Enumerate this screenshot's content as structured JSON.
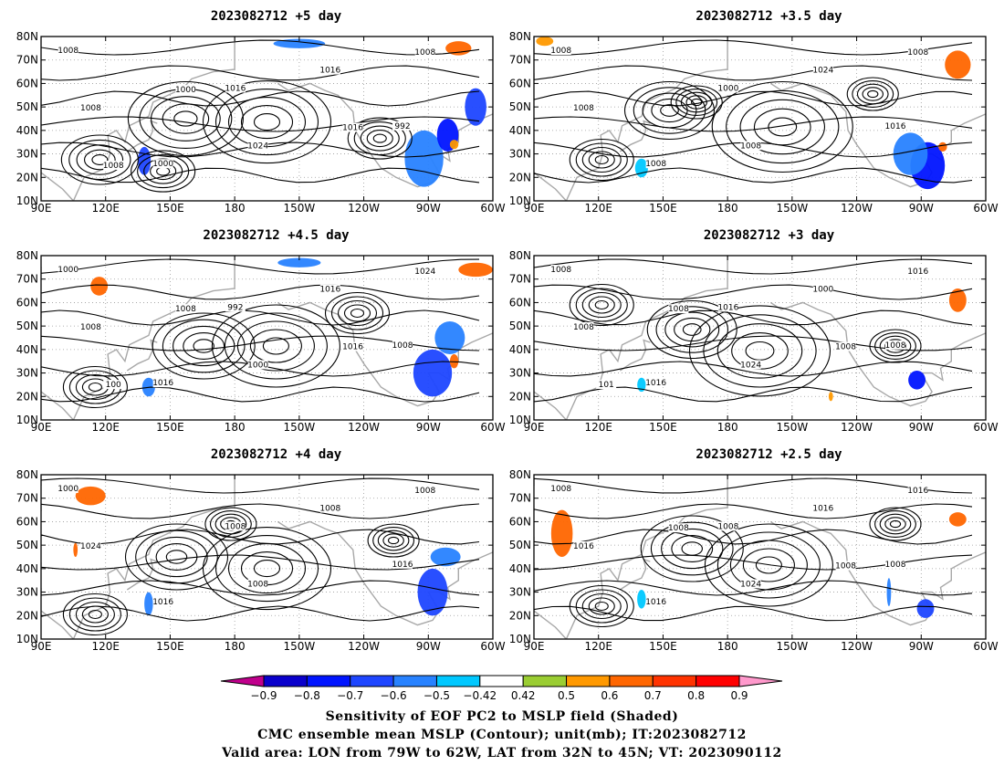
{
  "panels": [
    {
      "title": "2023082712 +5 day",
      "contour_labels": [
        "1008",
        "1016",
        "992",
        "1000",
        "1016",
        "1008",
        "1024",
        "1008",
        "1000",
        "1016",
        "1008"
      ],
      "shading": [
        {
          "level": -0.7,
          "lon": 138,
          "lat": 27,
          "rx": 3,
          "ry": 6
        },
        {
          "level": -0.6,
          "lon": 268,
          "lat": 28,
          "rx": 9,
          "ry": 12
        },
        {
          "level": -0.8,
          "lon": 279,
          "lat": 38,
          "rx": 5,
          "ry": 7
        },
        {
          "level": -0.7,
          "lon": 292,
          "lat": 50,
          "rx": 5,
          "ry": 8
        },
        {
          "level": -0.6,
          "lon": 210,
          "lat": 77,
          "rx": 12,
          "ry": 2
        },
        {
          "level": 0.6,
          "lon": 284,
          "lat": 75,
          "rx": 6,
          "ry": 3
        },
        {
          "level": 0.5,
          "lon": 282,
          "lat": 34,
          "rx": 2,
          "ry": 2
        }
      ]
    },
    {
      "title": "2023082712 +3.5 day",
      "contour_labels": [
        "1008",
        "1000",
        "1016",
        "1008",
        "1024",
        "1008",
        "1008",
        "1008"
      ],
      "shading": [
        {
          "level": -0.8,
          "lon": 273,
          "lat": 25,
          "rx": 8,
          "ry": 10
        },
        {
          "level": -0.6,
          "lon": 265,
          "lat": 30,
          "rx": 8,
          "ry": 9
        },
        {
          "level": -0.5,
          "lon": 140,
          "lat": 24,
          "rx": 3,
          "ry": 4
        },
        {
          "level": 0.6,
          "lon": 287,
          "lat": 68,
          "rx": 6,
          "ry": 6
        },
        {
          "level": 0.5,
          "lon": 95,
          "lat": 78,
          "rx": 4,
          "ry": 2
        },
        {
          "level": 0.6,
          "lon": 280,
          "lat": 33,
          "rx": 2,
          "ry": 2
        }
      ]
    },
    {
      "title": "2023082712 +4.5 day",
      "contour_labels": [
        "1000",
        "992",
        "1008",
        "1016",
        "1016",
        "1008",
        "1000",
        "1024",
        "1008",
        "1016",
        "100"
      ],
      "shading": [
        {
          "level": 0.6,
          "lon": 117,
          "lat": 67,
          "rx": 4,
          "ry": 4
        },
        {
          "level": -0.6,
          "lon": 210,
          "lat": 77,
          "rx": 10,
          "ry": 2
        },
        {
          "level": -0.6,
          "lon": 140,
          "lat": 24,
          "rx": 3,
          "ry": 4
        },
        {
          "level": -0.7,
          "lon": 272,
          "lat": 30,
          "rx": 9,
          "ry": 10
        },
        {
          "level": -0.6,
          "lon": 280,
          "lat": 45,
          "rx": 7,
          "ry": 7
        },
        {
          "level": 0.6,
          "lon": 292,
          "lat": 74,
          "rx": 8,
          "ry": 3
        },
        {
          "level": 0.6,
          "lon": 282,
          "lat": 35,
          "rx": 2,
          "ry": 3
        }
      ]
    },
    {
      "title": "2023082712 +3 day",
      "contour_labels": [
        "1008",
        "1016",
        "1008",
        "1016",
        "1000",
        "1008",
        "1024",
        "1016",
        "1008",
        "1008",
        "101"
      ],
      "shading": [
        {
          "level": -0.8,
          "lon": 268,
          "lat": 27,
          "rx": 4,
          "ry": 4
        },
        {
          "level": -0.5,
          "lon": 140,
          "lat": 25,
          "rx": 2,
          "ry": 3
        },
        {
          "level": 0.6,
          "lon": 287,
          "lat": 61,
          "rx": 4,
          "ry": 5
        },
        {
          "level": 0.5,
          "lon": 228,
          "lat": 20,
          "rx": 1,
          "ry": 2
        }
      ]
    },
    {
      "title": "2023082712 +4 day",
      "contour_labels": [
        "1000",
        "1008",
        "1016",
        "1016",
        "1008",
        "1024",
        "1008",
        "1008"
      ],
      "shading": [
        {
          "level": 0.6,
          "lon": 113,
          "lat": 71,
          "rx": 7,
          "ry": 4
        },
        {
          "level": 0.6,
          "lon": 106,
          "lat": 48,
          "rx": 1,
          "ry": 3
        },
        {
          "level": -0.6,
          "lon": 140,
          "lat": 25,
          "rx": 2,
          "ry": 5
        },
        {
          "level": -0.7,
          "lon": 272,
          "lat": 30,
          "rx": 7,
          "ry": 10
        },
        {
          "level": -0.6,
          "lon": 278,
          "lat": 45,
          "rx": 7,
          "ry": 4
        }
      ]
    },
    {
      "title": "2023082712 +2.5 day",
      "contour_labels": [
        "1008",
        "1008",
        "1008",
        "1016",
        "1016",
        "1016",
        "1024",
        "1016",
        "1008",
        "1008"
      ],
      "shading": [
        {
          "level": 0.6,
          "lon": 103,
          "lat": 55,
          "rx": 5,
          "ry": 10
        },
        {
          "level": 0.6,
          "lon": 287,
          "lat": 61,
          "rx": 4,
          "ry": 3
        },
        {
          "level": -0.7,
          "lon": 272,
          "lat": 23,
          "rx": 4,
          "ry": 4
        },
        {
          "level": -0.6,
          "lon": 255,
          "lat": 30,
          "rx": 1,
          "ry": 6
        },
        {
          "level": -0.5,
          "lon": 140,
          "lat": 27,
          "rx": 2,
          "ry": 4
        }
      ]
    }
  ],
  "map": {
    "lon_range": [
      90,
      300
    ],
    "lat_range": [
      10,
      80
    ],
    "lon_ticks": [
      90,
      120,
      150,
      180,
      210,
      240,
      270,
      300
    ],
    "lon_tick_labels": [
      "90E",
      "120E",
      "150E",
      "180",
      "150W",
      "120W",
      "90W",
      "60W"
    ],
    "lat_ticks": [
      10,
      20,
      30,
      40,
      50,
      60,
      70,
      80
    ],
    "lat_tick_labels": [
      "10N",
      "20N",
      "30N",
      "40N",
      "50N",
      "60N",
      "70N",
      "80N"
    ]
  },
  "colorbar": {
    "levels": [
      "-0.9",
      "-0.8",
      "-0.7",
      "-0.6",
      "-0.5",
      "-0.42",
      "0.42",
      "0.5",
      "0.6",
      "0.7",
      "0.8",
      "0.9"
    ],
    "colors": [
      "#c0008c",
      "#0a00cc",
      "#0014ff",
      "#1e46ff",
      "#2882ff",
      "#00c8ff",
      "#ffffff",
      "#9acd32",
      "#ff9900",
      "#ff6600",
      "#ff3300",
      "#ff0000",
      "#ff99cc"
    ]
  },
  "captions": [
    "Sensitivity of EOF PC2 to MSLP field (Shaded)",
    "CMC ensemble mean MSLP (Contour); unit(mb); IT:2023082712",
    "Valid area: LON from 79W to 62W, LAT from 32N to 45N; VT: 2023090112"
  ]
}
